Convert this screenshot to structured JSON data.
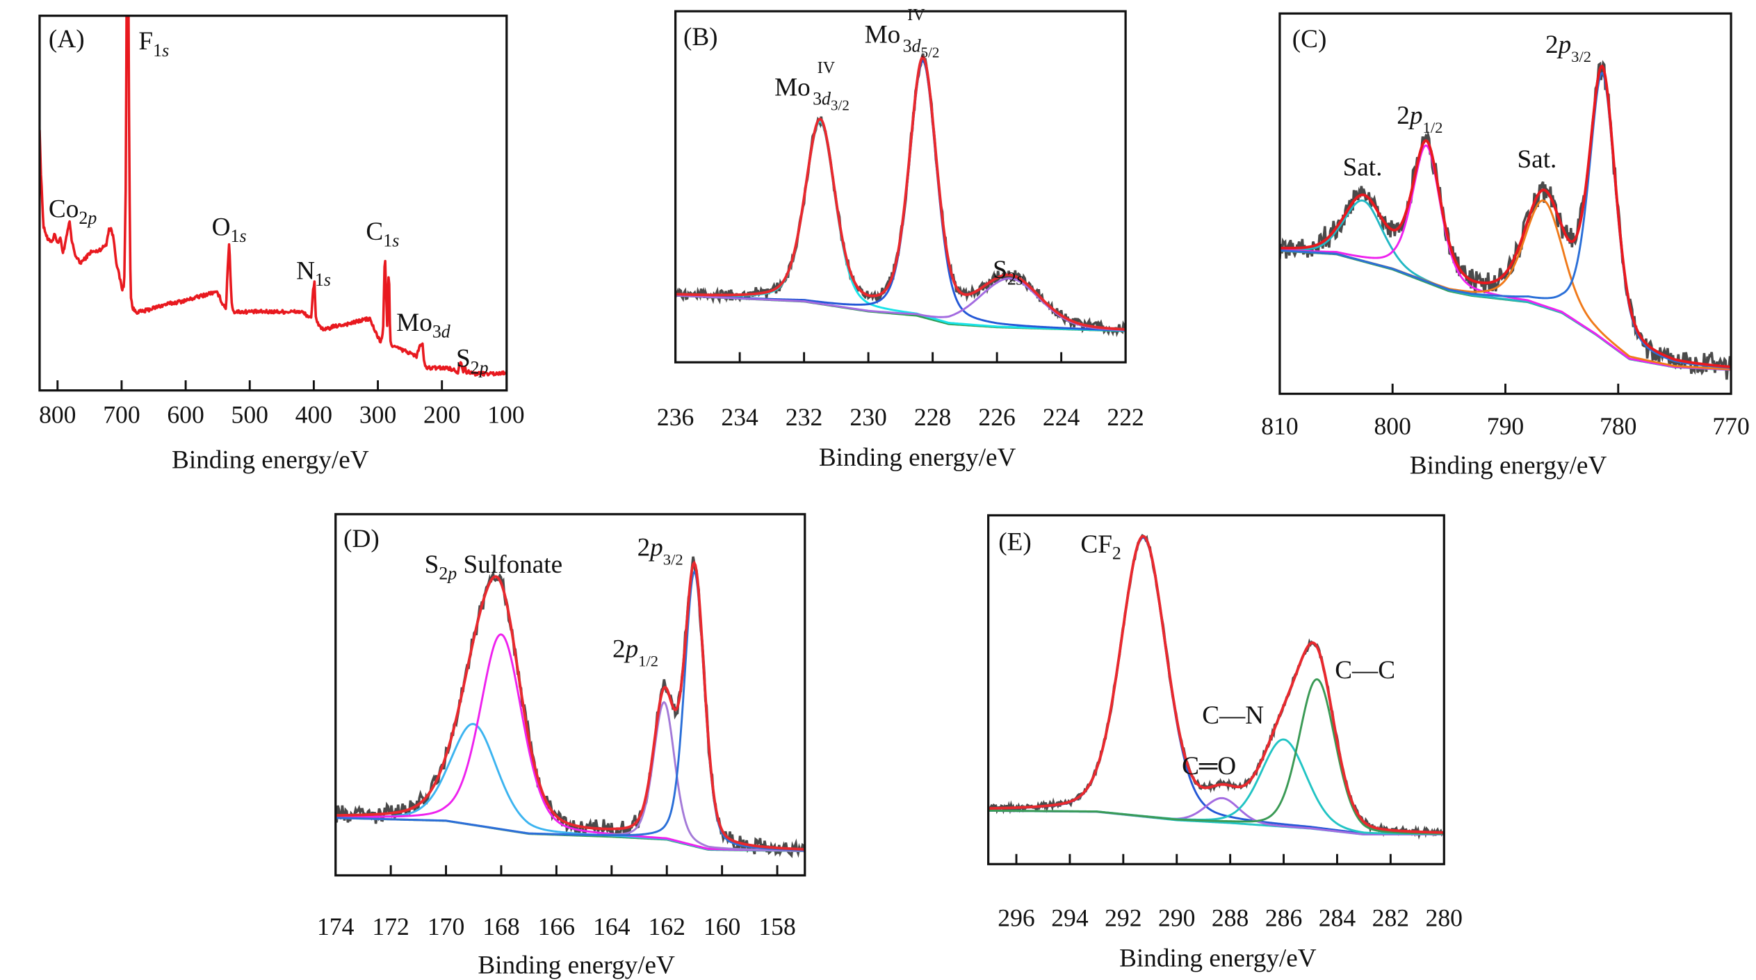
{
  "chart_data": [
    {
      "panel_label": "(A)",
      "type": "line",
      "xlabel": "Binding energy/eV",
      "xlim": [
        828,
        99
      ],
      "ylim": [
        0,
        100
      ],
      "xticks": [
        800,
        700,
        600,
        500,
        400,
        300,
        200,
        100
      ],
      "grid": false,
      "series": [
        {
          "color": "#e8191f",
          "points": [
            [
              828,
              70
            ],
            [
              826,
              58
            ],
            [
              822,
              44
            ],
            [
              815,
              40
            ],
            [
              808,
              40
            ],
            [
              804,
              42
            ],
            [
              800,
              39
            ],
            [
              796,
              41
            ],
            [
              792,
              37
            ],
            [
              789,
              38
            ],
            [
              785,
              42
            ],
            [
              781,
              45
            ],
            [
              778,
              40
            ],
            [
              772,
              36
            ],
            [
              765,
              34
            ],
            [
              758,
              35
            ],
            [
              748,
              37
            ],
            [
              740,
              37
            ],
            [
              730,
              38
            ],
            [
              724,
              39
            ],
            [
              720,
              43
            ],
            [
              716,
              43
            ],
            [
              712,
              40
            ],
            [
              708,
              34
            ],
            [
              703,
              30
            ],
            [
              699,
              27
            ],
            [
              696,
              28
            ],
            [
              693,
              60
            ],
            [
              692,
              130
            ],
            [
              690,
              130
            ],
            [
              688,
              60
            ],
            [
              686,
              26
            ],
            [
              683,
              22
            ],
            [
              678,
              21
            ],
            [
              668,
              21
            ],
            [
              650,
              22
            ],
            [
              630,
              23
            ],
            [
              600,
              24
            ],
            [
              580,
              25
            ],
            [
              560,
              26
            ],
            [
              550,
              26
            ],
            [
              542,
              23
            ],
            [
              537,
              22
            ],
            [
              534,
              34
            ],
            [
              532,
              40
            ],
            [
              530,
              30
            ],
            [
              528,
              23
            ],
            [
              525,
              21
            ],
            [
              500,
              21
            ],
            [
              470,
              21
            ],
            [
              440,
              21
            ],
            [
              420,
              21
            ],
            [
              410,
              20
            ],
            [
              404,
              19
            ],
            [
              401,
              27
            ],
            [
              399,
              29
            ],
            [
              397,
              20
            ],
            [
              394,
              18
            ],
            [
              385,
              16
            ],
            [
              370,
              17
            ],
            [
              340,
              18
            ],
            [
              320,
              19
            ],
            [
              312,
              19
            ],
            [
              305,
              16
            ],
            [
              296,
              13
            ],
            [
              292,
              15
            ],
            [
              289,
              37
            ],
            [
              287,
              25
            ],
            [
              285,
              15
            ],
            [
              284,
              31
            ],
            [
              282,
              28
            ],
            [
              281,
              14
            ],
            [
              278,
              12
            ],
            [
              265,
              11
            ],
            [
              250,
              10
            ],
            [
              240,
              9
            ],
            [
              236,
              11
            ],
            [
              233,
              12.5
            ],
            [
              230,
              12
            ],
            [
              228,
              8
            ],
            [
              225,
              6
            ],
            [
              210,
              6
            ],
            [
              190,
              6
            ],
            [
              175,
              5
            ],
            [
              171,
              8
            ],
            [
              169,
              7
            ],
            [
              167,
              5
            ],
            [
              164,
              6.5
            ],
            [
              162,
              5
            ],
            [
              150,
              4.5
            ],
            [
              130,
              4.5
            ],
            [
              110,
              4.5
            ],
            [
              99,
              5
            ]
          ]
        }
      ],
      "annotations": [
        {
          "base": "F",
          "sub": "1s"
        },
        {
          "base": "Co",
          "sub": "2p"
        },
        {
          "base": "O",
          "sub": "1s"
        },
        {
          "base": "N",
          "sub": "1s"
        },
        {
          "base": "C",
          "sub": "1s"
        },
        {
          "base": "Mo",
          "sub": "3d"
        },
        {
          "base": "S",
          "sub": "2p"
        }
      ]
    },
    {
      "panel_label": "(B)",
      "type": "line",
      "xlabel": "Binding energy/eV",
      "xlim": [
        236,
        222
      ],
      "ylim": [
        0,
        100
      ],
      "xticks": [
        236,
        234,
        232,
        230,
        228,
        226,
        224,
        222
      ],
      "grid": false,
      "raw_color": "#4a4a4a",
      "envelope_color": "#e8292e",
      "background": {
        "color": "#2f9e55",
        "points": [
          [
            236,
            19
          ],
          [
            232,
            17.3
          ],
          [
            230,
            14.5
          ],
          [
            228.5,
            13.3
          ],
          [
            227.5,
            10.9
          ],
          [
            226,
            10
          ],
          [
            222,
            8.9
          ]
        ]
      },
      "components": [
        {
          "center": 231.5,
          "height": 52,
          "fwhm": 1.1,
          "eta": 0.35,
          "color": "#19e3e8"
        },
        {
          "center": 228.3,
          "height": 73,
          "fwhm": 1.0,
          "eta": 0.35,
          "color": "#2458d6"
        },
        {
          "center": 225.6,
          "height": 14,
          "fwhm": 2.2,
          "eta": 0.2,
          "color": "#a36be0"
        }
      ],
      "annotations": [
        {
          "base": "Mo",
          "sup": "IV",
          "sub": "3d",
          "sub2": "3/2"
        },
        {
          "base": "Mo",
          "sup": "IV",
          "sub": "3d",
          "sub2": "5/2"
        },
        {
          "base": "S",
          "sub": "2s"
        }
      ]
    },
    {
      "panel_label": "(C)",
      "type": "line",
      "xlabel": "Binding energy/eV",
      "xlim": [
        810,
        770
      ],
      "ylim": [
        0,
        100
      ],
      "xticks": [
        810,
        800,
        790,
        780,
        770
      ],
      "grid": false,
      "raw_color": "#4a4a4a",
      "envelope_color": "#e8191f",
      "background": {
        "color": "#35a060",
        "points": [
          [
            810,
            37.6
          ],
          [
            805,
            36.7
          ],
          [
            800,
            32.7
          ],
          [
            795,
            27
          ],
          [
            793,
            25.8
          ],
          [
            788,
            24.1
          ],
          [
            785,
            21.3
          ],
          [
            782,
            15.6
          ],
          [
            779,
            9.1
          ],
          [
            775,
            7
          ],
          [
            770,
            6.3
          ]
        ]
      },
      "components": [
        {
          "center": 802.6,
          "height": 16,
          "fwhm": 4.0,
          "eta": 0.3,
          "color": "#22b8c4"
        },
        {
          "center": 797.0,
          "height": 36,
          "fwhm": 3.0,
          "eta": 0.5,
          "color": "#ee22ee"
        },
        {
          "center": 786.6,
          "height": 28,
          "fwhm": 4.0,
          "eta": 0.4,
          "color": "#f07a1a"
        },
        {
          "center": 781.4,
          "height": 70,
          "fwhm": 2.8,
          "eta": 0.5,
          "color": "#2a6fd8"
        }
      ],
      "annotations": [
        {
          "base": "2p",
          "sub": "3/2"
        },
        {
          "base": "2p",
          "sub": "1/2"
        },
        {
          "base": "Sat."
        },
        {
          "base": "Sat."
        }
      ]
    },
    {
      "panel_label": "(D)",
      "type": "line",
      "xlabel": "Binding energy/eV",
      "xlim": [
        174,
        157
      ],
      "ylim": [
        0,
        100
      ],
      "xticks": [
        174,
        172,
        170,
        168,
        166,
        164,
        162,
        160,
        158
      ],
      "grid": false,
      "raw_color": "#4a4a4a",
      "envelope_color": "#e8292e",
      "background": {
        "color": "#35a060",
        "points": [
          [
            174,
            15.9
          ],
          [
            170,
            15.1
          ],
          [
            167,
            11.5
          ],
          [
            164,
            10.7
          ],
          [
            162,
            9.9
          ],
          [
            160.5,
            7.1
          ],
          [
            157,
            6.7
          ]
        ]
      },
      "components": [
        {
          "center": 169.0,
          "height": 28,
          "fwhm": 2.0,
          "eta": 0.3,
          "color": "#3cb4f0"
        },
        {
          "center": 168.0,
          "height": 54,
          "fwhm": 1.8,
          "eta": 0.3,
          "color": "#ee22ee"
        },
        {
          "center": 162.1,
          "height": 38,
          "fwhm": 0.9,
          "eta": 0.3,
          "color": "#a47ad8"
        },
        {
          "center": 161.0,
          "height": 76,
          "fwhm": 0.85,
          "eta": 0.3,
          "color": "#2a6fd8"
        }
      ],
      "annotations": [
        {
          "base": "S",
          "sub": "2p",
          "after": " Sulfonate"
        },
        {
          "base": "2p",
          "sub": "3/2"
        },
        {
          "base": "2p",
          "sub": "1/2"
        }
      ]
    },
    {
      "panel_label": "(E)",
      "type": "line",
      "xlabel": "Binding energy/eV",
      "xlim": [
        297.05,
        280
      ],
      "ylim": [
        0,
        100
      ],
      "xticks": [
        296,
        294,
        292,
        290,
        288,
        286,
        284,
        282,
        280
      ],
      "grid": false,
      "raw_color": "#4a4a4a",
      "envelope_color": "#e8292e",
      "background": {
        "color": "#22c4c4",
        "points": [
          [
            297,
            15.3
          ],
          [
            293,
            15
          ],
          [
            290,
            12.6
          ],
          [
            288,
            11.8
          ],
          [
            285,
            10.2
          ],
          [
            283,
            8.5
          ],
          [
            280,
            8.5
          ]
        ]
      },
      "components": [
        {
          "center": 291.25,
          "height": 80,
          "fwhm": 2.0,
          "eta": 0.25,
          "color": "#2458d6"
        },
        {
          "center": 288.3,
          "height": 7,
          "fwhm": 1.5,
          "eta": 0.2,
          "color": "#a36be0"
        },
        {
          "center": 286.0,
          "height": 25,
          "fwhm": 2.0,
          "eta": 0.2,
          "color": "#22c4c4"
        },
        {
          "center": 284.75,
          "height": 43,
          "fwhm": 1.6,
          "eta": 0.2,
          "color": "#3a9a55"
        }
      ],
      "annotations": [
        {
          "base": "CF",
          "sub": "2"
        },
        {
          "base": "C—C"
        },
        {
          "base": "C—N"
        },
        {
          "base": "C═O"
        }
      ]
    }
  ]
}
